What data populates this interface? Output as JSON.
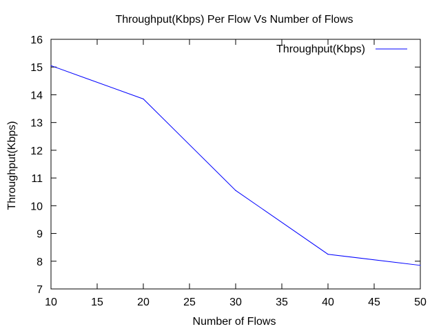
{
  "chart_data": {
    "type": "line",
    "title": "Throughput(Kbps) Per Flow  Vs Number of Flows",
    "xlabel": "Number of Flows",
    "ylabel": "Throughput(Kbps)",
    "xlim": [
      10,
      50
    ],
    "ylim": [
      7,
      16
    ],
    "xticks": [
      "10",
      "15",
      "20",
      "25",
      "30",
      "35",
      "40",
      "45",
      "50"
    ],
    "yticks": [
      "7",
      "8",
      "9",
      "10",
      "11",
      "12",
      "13",
      "14",
      "15",
      "16"
    ],
    "grid": false,
    "legend_position": "top-right",
    "series": [
      {
        "name": "Throughput(Kbps)",
        "color": "#0000ff",
        "x": [
          10,
          20,
          30,
          40,
          50
        ],
        "y": [
          15.05,
          13.85,
          10.55,
          8.25,
          7.85
        ]
      }
    ]
  }
}
